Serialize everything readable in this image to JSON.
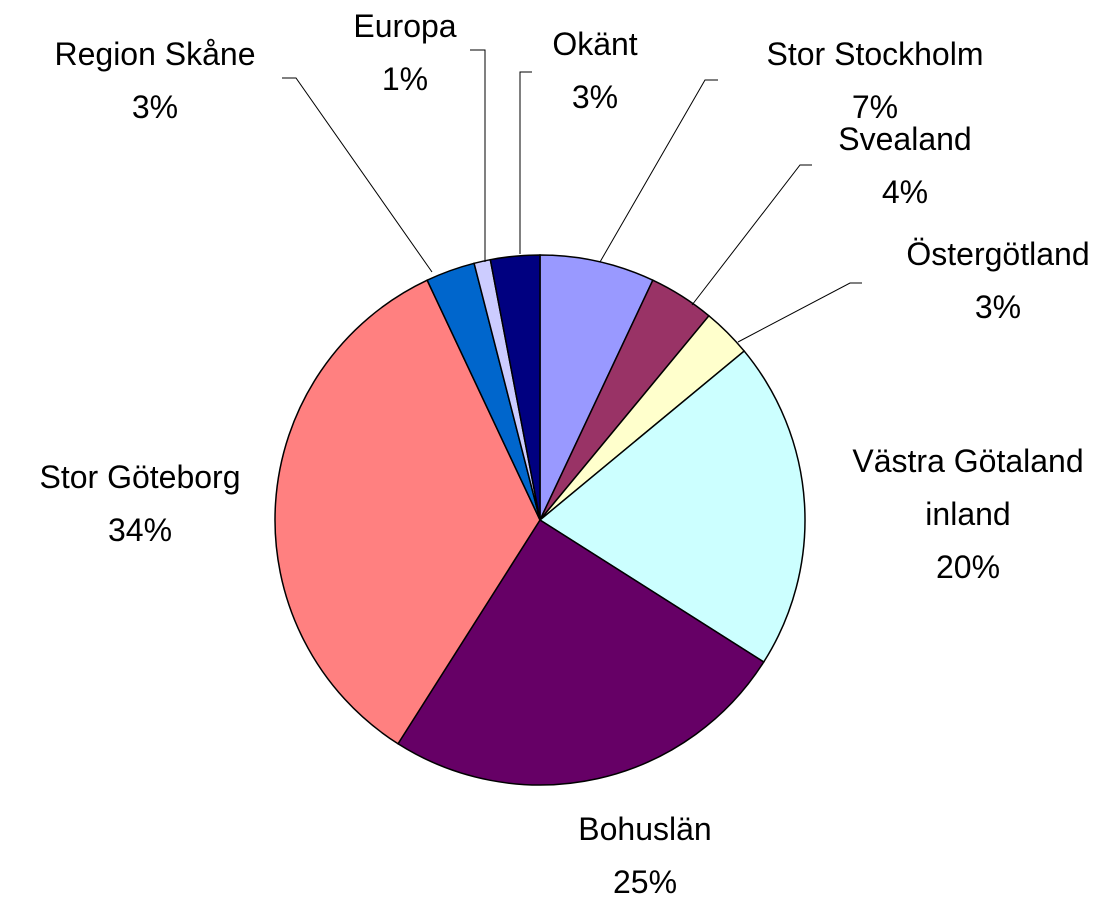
{
  "chart_data": {
    "type": "pie",
    "categories": [
      "Stor Stockholm",
      "Svealand",
      "Östergötland",
      "Västra Götaland inland",
      "Bohuslän",
      "Stor Göteborg",
      "Region Skåne",
      "Europa",
      "Okänt"
    ],
    "values": [
      7,
      4,
      3,
      20,
      25,
      34,
      3,
      1,
      3
    ],
    "value_labels": [
      "7%",
      "4%",
      "3%",
      "20%",
      "25%",
      "34%",
      "3%",
      "1%",
      "3%"
    ],
    "colors": [
      "#9999ff",
      "#993366",
      "#ffffcc",
      "#ccffff",
      "#660066",
      "#ff8080",
      "#0066cc",
      "#ccccff",
      "#000080"
    ]
  }
}
